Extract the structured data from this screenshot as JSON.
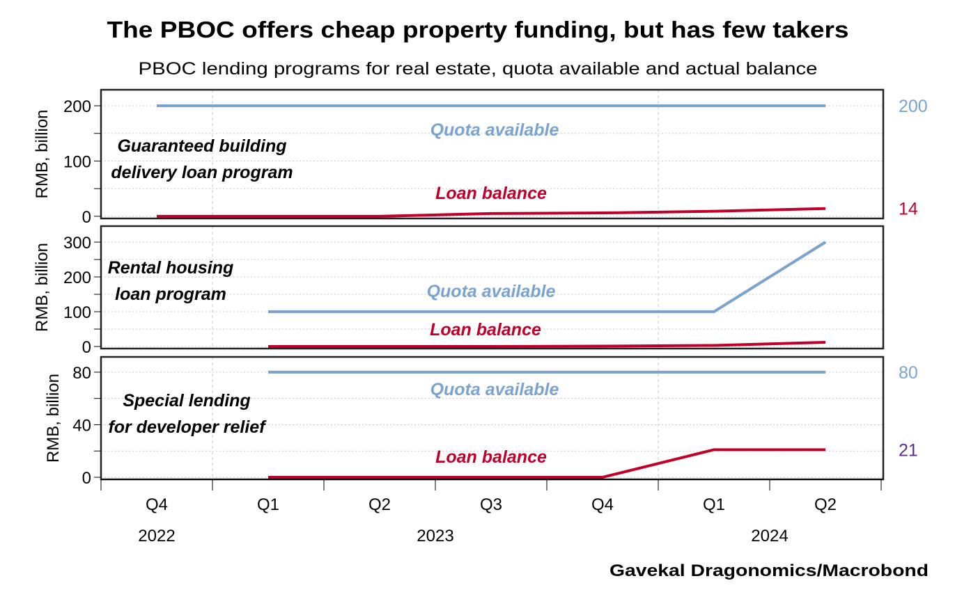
{
  "title": "The PBOC offers cheap property funding, but has few takers",
  "subtitle": "PBOC lending programs for real estate, quota available and actual balance",
  "source": "Gavekal Dragonomics/Macrobond",
  "colors": {
    "quota": "#7ba3cf",
    "loan": "#c0002a",
    "special_end": "#5b2d8e",
    "grid": "#c8c8c8"
  },
  "chart_data": {
    "type": "line",
    "x": [
      "2022 Q4",
      "2023 Q1",
      "2023 Q2",
      "2023 Q3",
      "2023 Q4",
      "2024 Q1",
      "2024 Q2"
    ],
    "x_tick_labels": [
      "Q4",
      "Q1",
      "Q2",
      "Q3",
      "Q4",
      "Q1",
      "Q2"
    ],
    "x_year_labels": [
      {
        "label": "2022",
        "quarter": "2022 Q4"
      },
      {
        "label": "2023",
        "quarter": "2023 Q3"
      },
      {
        "label": "2024",
        "quarter": "2024 Q2"
      }
    ],
    "grid": true,
    "panels": [
      {
        "annotation": [
          "Guaranteed building",
          "delivery loan program"
        ],
        "ylabel": "RMB, billion",
        "ylim": [
          -4,
          229
        ],
        "yticks": [
          0,
          100,
          200
        ],
        "minor_step": 50,
        "series": [
          {
            "name": "Quota available",
            "values": [
              200,
              200,
              200,
              200,
              200,
              200,
              200
            ],
            "end_label": "200",
            "color_key": "quota"
          },
          {
            "name": "Loan balance",
            "values": [
              0,
              0,
              0,
              5,
              6,
              9,
              14
            ],
            "end_label": "14",
            "color_key": "loan"
          }
        ]
      },
      {
        "annotation": [
          "Rental housing",
          "loan program"
        ],
        "ylabel": "RMB, billion",
        "ylim": [
          -6,
          346
        ],
        "yticks": [
          0,
          100,
          200,
          300
        ],
        "minor_step": 50,
        "series": [
          {
            "name": "Quota available",
            "values": [
              null,
              100,
              100,
              100,
              100,
              100,
              300
            ],
            "end_label": "",
            "color_key": "quota"
          },
          {
            "name": "Loan balance",
            "values": [
              null,
              0,
              0,
              0,
              1,
              3,
              12
            ],
            "end_label": "",
            "color_key": "loan"
          }
        ]
      },
      {
        "annotation": [
          "Special lending",
          "for developer relief"
        ],
        "ylabel": "RMB, billion",
        "ylim": [
          -1.6,
          91.6
        ],
        "yticks": [
          0,
          40,
          80
        ],
        "minor_step": 20,
        "series": [
          {
            "name": "Quota available",
            "values": [
              null,
              80,
              80,
              80,
              80,
              80,
              80
            ],
            "end_label": "80",
            "color_key": "quota"
          },
          {
            "name": "Loan balance",
            "values": [
              null,
              0,
              0,
              0,
              0,
              21,
              21
            ],
            "end_label": "21",
            "color_key": "special_end"
          }
        ]
      }
    ]
  }
}
